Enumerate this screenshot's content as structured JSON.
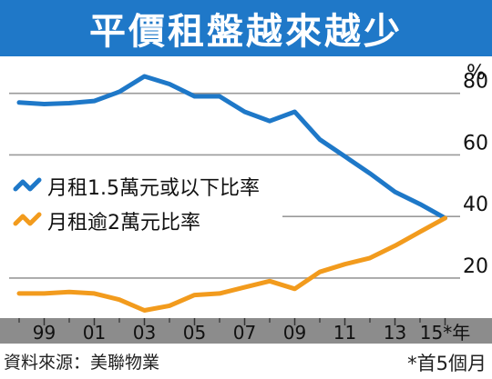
{
  "title": "平價租盤越來越少",
  "unit_label": "%",
  "source": "資料來源：美聯物業",
  "note": "*首5個月",
  "chart_data": {
    "type": "line",
    "title": "平價租盤越來越少",
    "ylabel": "%",
    "ylim": [
      7,
      92
    ],
    "yticks": [
      20,
      40,
      60,
      80
    ],
    "grid": true,
    "x_tick_labels": [
      "99",
      "01",
      "03",
      "05",
      "07",
      "09",
      "11",
      "13",
      "15*年"
    ],
    "x_tick_positions": [
      1999,
      2001,
      2003,
      2005,
      2007,
      2009,
      2011,
      2013,
      2015
    ],
    "xlim": [
      1997.6,
      2015.6
    ],
    "legend_position": "left-center",
    "colors": {
      "series_1": "#1e78c8",
      "series_2": "#f29b1d",
      "band": "#8c8c8c",
      "title_bg": "#1f78c8"
    },
    "series": [
      {
        "name": "月租1.5萬元或以下比率",
        "color": "#1e78c8",
        "x": [
          1998,
          1999,
          2000,
          2001,
          2002,
          2003,
          2004,
          2005,
          2006,
          2007,
          2008,
          2009,
          2010,
          2011,
          2012,
          2013,
          2014,
          2015
        ],
        "values": [
          77,
          76.5,
          76.8,
          77.5,
          80.5,
          85.5,
          83,
          79,
          79,
          74,
          71,
          74,
          65,
          59.5,
          54,
          48,
          44,
          39.5
        ]
      },
      {
        "name": "月租逾2萬元比率",
        "color": "#f29b1d",
        "x": [
          1998,
          1999,
          2000,
          2001,
          2002,
          2003,
          2004,
          2005,
          2006,
          2007,
          2008,
          2009,
          2010,
          2011,
          2012,
          2013,
          2014,
          2015
        ],
        "values": [
          15,
          15,
          15.5,
          15,
          13,
          9.5,
          11,
          14.5,
          15,
          17,
          19,
          16.5,
          22,
          24.5,
          26.5,
          30.5,
          35,
          39.5
        ]
      }
    ]
  }
}
